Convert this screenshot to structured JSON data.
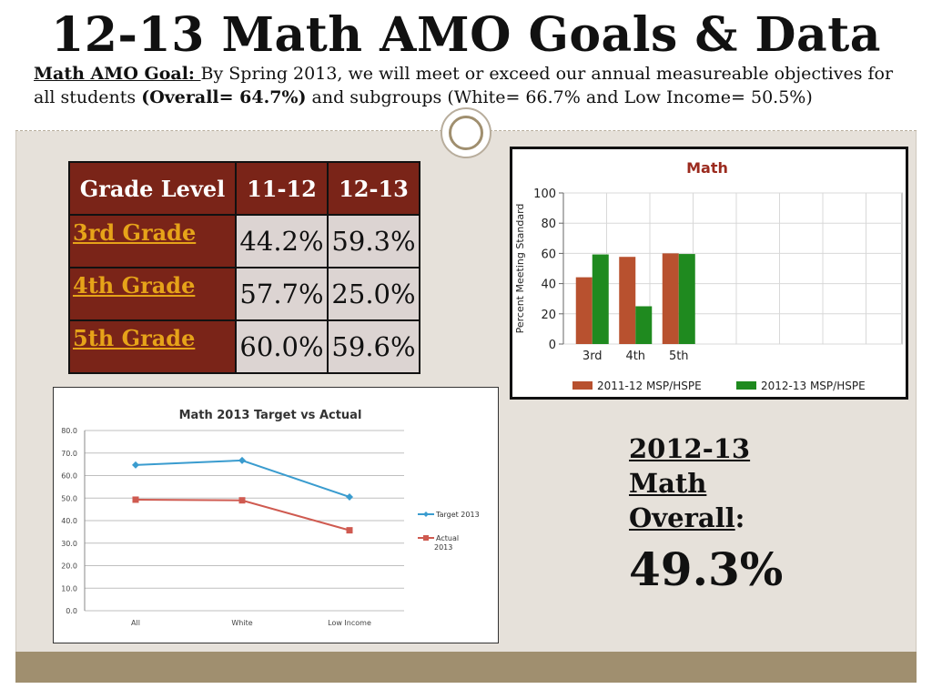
{
  "title": "12-13 Math AMO Goals & Data",
  "goal": {
    "label": "Math AMO Goal: ",
    "text1": "By Spring 2013, we will meet or exceed our annual measureable objectives for all students ",
    "overall": "(Overall= 64.7%)",
    "text2": " and subgroups (White= 66.7% and Low Income= 50.5%)"
  },
  "table": {
    "headers": [
      "Grade Level",
      "11-12",
      "12-13"
    ],
    "rows": [
      {
        "grade": "3rd Grade",
        "y1112": "44.2%",
        "y1213": "59.3%"
      },
      {
        "grade": "4th Grade",
        "y1112": "57.7%",
        "y1213": "25.0%"
      },
      {
        "grade": "5th Grade",
        "y1112": "60.0%",
        "y1213": "59.6%"
      }
    ]
  },
  "summary": {
    "line1": "2012-13",
    "line2": "Math",
    "line3": "Overall",
    "colon": ":",
    "value": "49.3%"
  },
  "chart_data": [
    {
      "type": "bar",
      "title": "Math",
      "ylabel": "Percent Meeting Standard",
      "categories": [
        "3rd",
        "4th",
        "5th"
      ],
      "ylim": [
        0,
        100
      ],
      "yticks": [
        "0",
        "20",
        "40",
        "60",
        "80",
        "100"
      ],
      "series": [
        {
          "name": "2011-12 MSP/HSPE",
          "values": [
            44.2,
            57.7,
            60.0
          ],
          "color": "#b8512f"
        },
        {
          "name": "2012-13 MSP/HSPE",
          "values": [
            59.3,
            25.0,
            59.6
          ],
          "color": "#1f8a1f"
        }
      ],
      "legend": "bottom",
      "grid": true,
      "title_color": "#9b2a1e"
    },
    {
      "type": "line",
      "title": "Math 2013 Target vs Actual",
      "categories": [
        "All",
        "White",
        "Low Income"
      ],
      "ylim": [
        0,
        80
      ],
      "yticks": [
        "0.0",
        "10.0",
        "20.0",
        "30.0",
        "40.0",
        "50.0",
        "60.0",
        "70.0",
        "80.0"
      ],
      "series": [
        {
          "name": "Target 2013",
          "values": [
            64.7,
            66.7,
            50.5
          ],
          "color": "#3a9ccf",
          "marker": "diamond"
        },
        {
          "name": "Actual 2013",
          "values": [
            49.3,
            49.0,
            35.7
          ],
          "color": "#cf5a50",
          "marker": "square"
        }
      ],
      "legend": "right",
      "grid": true
    }
  ]
}
